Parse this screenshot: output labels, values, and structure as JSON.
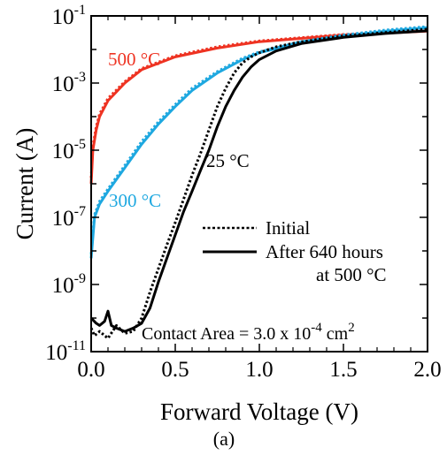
{
  "chart_data": {
    "type": "line",
    "xlabel": "Forward Voltage (V)",
    "ylabel": "Current (A)",
    "xlim": [
      0.0,
      2.0
    ],
    "ylim_log10": [
      -11,
      -1
    ],
    "yscale": "log",
    "x_ticks": [
      "0.0",
      "0.5",
      "1.0",
      "1.5",
      "2.0"
    ],
    "y_ticks": [
      {
        "base": "10",
        "exp": "-1"
      },
      {
        "base": "10",
        "exp": "-3"
      },
      {
        "base": "10",
        "exp": "-5"
      },
      {
        "base": "10",
        "exp": "-7"
      },
      {
        "base": "10",
        "exp": "-9"
      },
      {
        "base": "10",
        "exp": "-11"
      }
    ],
    "legend": {
      "placement": "center-right",
      "initial_label": "Initial",
      "after_label_line1": "After 640 hours",
      "after_label_line2": "at 500 °C"
    },
    "annotations": {
      "t500": "500 °C",
      "t300": "300 °C",
      "t25": "25 °C",
      "contact_prefix": "Contact Area = 3.0 x 10",
      "contact_exp": "-4",
      "contact_unit": " cm",
      "contact_unit_exp": "2"
    },
    "caption": "(a)",
    "colors": {
      "t500": "#ee3322",
      "t300": "#1ea8e0",
      "t25": "#000000"
    },
    "series": [
      {
        "name": "500 °C",
        "linestyle": "solid",
        "color": "#ee3322",
        "x": [
          0.0,
          0.01,
          0.03,
          0.05,
          0.1,
          0.2,
          0.3,
          0.5,
          0.75,
          1.0,
          1.5,
          2.0
        ],
        "y": [
          1e-06,
          1e-05,
          4e-05,
          0.0001,
          0.0003,
          0.001,
          0.0025,
          0.006,
          0.011,
          0.017,
          0.027,
          0.035
        ]
      },
      {
        "name": "500 °C",
        "linestyle": "dotted",
        "color": "#ee3322",
        "x": [
          0.0,
          0.01,
          0.03,
          0.05,
          0.1,
          0.2,
          0.3,
          0.5,
          0.75,
          1.0,
          1.5,
          2.0
        ],
        "y": [
          1.5e-06,
          1.3e-05,
          5e-05,
          0.00012,
          0.00035,
          0.0011,
          0.0027,
          0.0065,
          0.012,
          0.018,
          0.028,
          0.036
        ]
      },
      {
        "name": "300 °C",
        "linestyle": "solid",
        "color": "#1ea8e0",
        "x": [
          0.0,
          0.02,
          0.05,
          0.1,
          0.2,
          0.3,
          0.4,
          0.5,
          0.6,
          0.75,
          0.9,
          1.0,
          1.25,
          1.5,
          1.75,
          2.0
        ],
        "y": [
          6e-09,
          1e-07,
          2.5e-07,
          6e-07,
          3e-06,
          1.5e-05,
          6e-05,
          0.0002,
          0.0006,
          0.002,
          0.005,
          0.008,
          0.016,
          0.025,
          0.035,
          0.045
        ]
      },
      {
        "name": "300 °C",
        "linestyle": "dotted",
        "color": "#1ea8e0",
        "x": [
          0.0,
          0.02,
          0.05,
          0.1,
          0.2,
          0.3,
          0.4,
          0.5,
          0.6,
          0.75,
          0.9,
          1.0,
          1.25,
          1.5,
          1.75,
          2.0
        ],
        "y": [
          8e-09,
          1.2e-07,
          3e-07,
          7e-07,
          3.5e-06,
          1.8e-05,
          7e-05,
          0.00023,
          0.0007,
          0.0022,
          0.0055,
          0.0085,
          0.017,
          0.027,
          0.038,
          0.048
        ]
      },
      {
        "name": "25 °C",
        "linestyle": "solid",
        "color": "#000000",
        "x": [
          0.0,
          0.03,
          0.05,
          0.08,
          0.1,
          0.12,
          0.15,
          0.2,
          0.25,
          0.3,
          0.35,
          0.4,
          0.45,
          0.5,
          0.55,
          0.6,
          0.65,
          0.7,
          0.75,
          0.8,
          0.85,
          0.9,
          0.95,
          1.0,
          1.1,
          1.25,
          1.5,
          1.75,
          2.0
        ],
        "y": [
          1e-10,
          7e-11,
          6e-11,
          8e-11,
          1.6e-10,
          6e-11,
          5e-11,
          4e-11,
          5e-11,
          7e-11,
          2e-10,
          1.2e-09,
          6e-09,
          3e-08,
          1.5e-07,
          6e-07,
          2.5e-06,
          1e-05,
          5e-05,
          0.0002,
          0.0006,
          0.0015,
          0.003,
          0.005,
          0.009,
          0.015,
          0.023,
          0.03,
          0.036
        ]
      },
      {
        "name": "25 °C",
        "linestyle": "dotted",
        "color": "#000000",
        "x": [
          0.0,
          0.02,
          0.05,
          0.1,
          0.15,
          0.2,
          0.25,
          0.3,
          0.35,
          0.4,
          0.45,
          0.5,
          0.55,
          0.6,
          0.65,
          0.7,
          0.75,
          0.8,
          0.85,
          0.9,
          0.95,
          1.0,
          1.1,
          1.25,
          1.5,
          1.75,
          2.0
        ],
        "y": [
          5e-11,
          3e-11,
          4e-11,
          2.5e-11,
          6e-11,
          3.5e-11,
          4e-11,
          1e-10,
          6e-10,
          3e-09,
          1.5e-08,
          7e-08,
          3.5e-07,
          1.8e-06,
          8e-06,
          4e-05,
          0.0002,
          0.0007,
          0.002,
          0.004,
          0.006,
          0.008,
          0.012,
          0.017,
          0.025,
          0.032,
          0.04
        ]
      }
    ]
  }
}
